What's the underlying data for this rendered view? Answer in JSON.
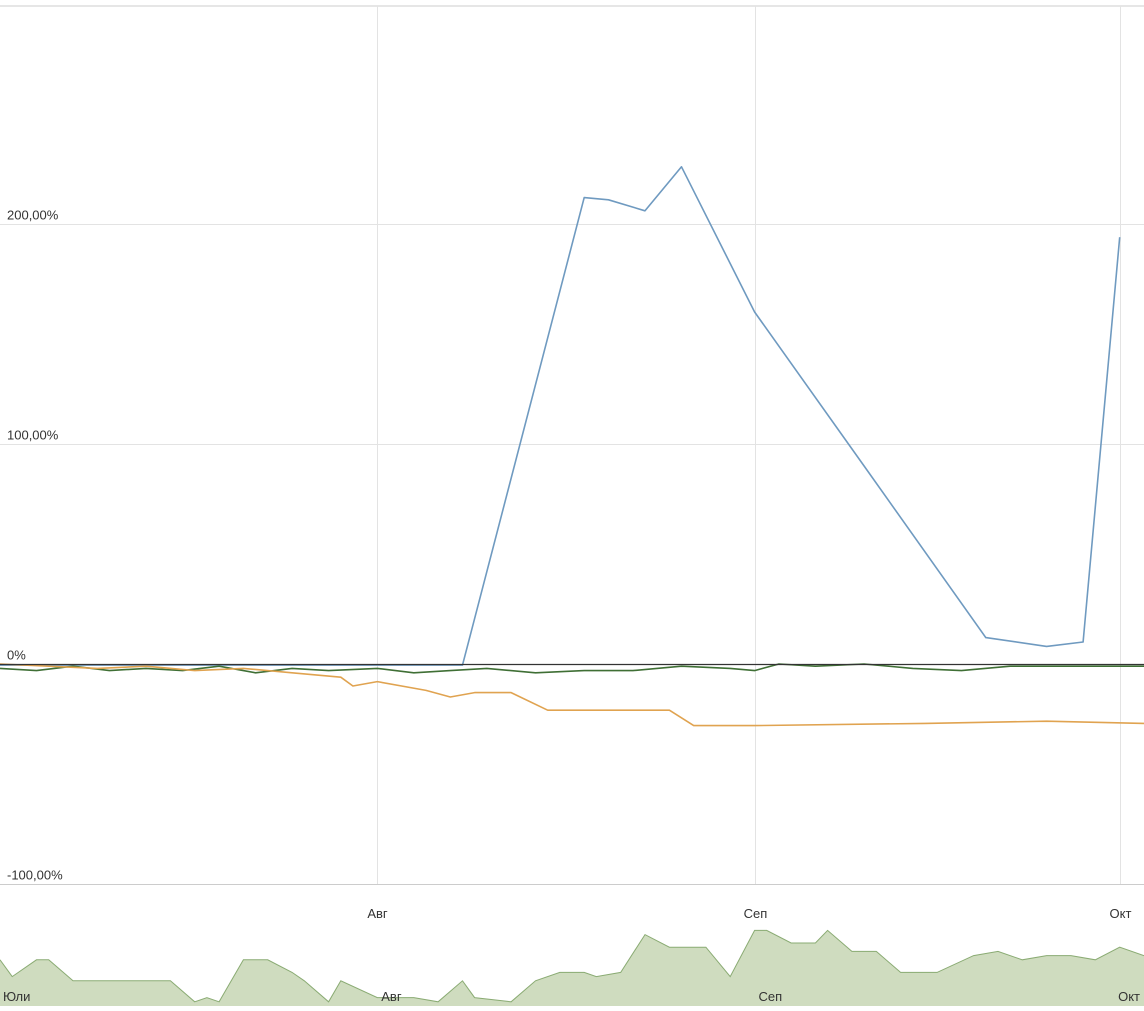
{
  "chart_data": {
    "type": "line",
    "ylim": [
      -100,
      300
    ],
    "y_ticks": [
      {
        "value": 200,
        "label": "200,00%"
      },
      {
        "value": 100,
        "label": "100,00%"
      },
      {
        "value": 0,
        "label": "0%"
      },
      {
        "value": -100,
        "label": "-100,00%"
      }
    ],
    "x_range": [
      "2013-07-01",
      "2013-10-03"
    ],
    "x_ticks": [
      {
        "date": "2013-08-01",
        "label": "Авг"
      },
      {
        "date": "2013-09-01",
        "label": "Сеп"
      },
      {
        "date": "2013-10-01",
        "label": "Окт"
      }
    ],
    "grid": true,
    "series": [
      {
        "color": "#6f9ac0",
        "points": [
          [
            "2013-07-01",
            -0.5
          ],
          [
            "2013-07-15",
            -0.5
          ],
          [
            "2013-08-01",
            -0.5
          ],
          [
            "2013-08-08",
            -0.5
          ],
          [
            "2013-08-18",
            212
          ],
          [
            "2013-08-20",
            211
          ],
          [
            "2013-08-23",
            206
          ],
          [
            "2013-08-26",
            226
          ],
          [
            "2013-09-01",
            160
          ],
          [
            "2013-09-10",
            90
          ],
          [
            "2013-09-20",
            12
          ],
          [
            "2013-09-25",
            8
          ],
          [
            "2013-09-28",
            10
          ],
          [
            "2013-10-01",
            194
          ]
        ]
      },
      {
        "color": "#3f6f35",
        "points": [
          [
            "2013-07-01",
            -2
          ],
          [
            "2013-07-04",
            -3
          ],
          [
            "2013-07-07",
            -1
          ],
          [
            "2013-07-10",
            -3
          ],
          [
            "2013-07-13",
            -2
          ],
          [
            "2013-07-16",
            -3
          ],
          [
            "2013-07-19",
            -1
          ],
          [
            "2013-07-22",
            -4
          ],
          [
            "2013-07-25",
            -2
          ],
          [
            "2013-07-28",
            -3
          ],
          [
            "2013-08-01",
            -2
          ],
          [
            "2013-08-04",
            -4
          ],
          [
            "2013-08-07",
            -3
          ],
          [
            "2013-08-10",
            -2
          ],
          [
            "2013-08-14",
            -4
          ],
          [
            "2013-08-18",
            -3
          ],
          [
            "2013-08-22",
            -3
          ],
          [
            "2013-08-26",
            -1
          ],
          [
            "2013-08-30",
            -2
          ],
          [
            "2013-09-01",
            -3
          ],
          [
            "2013-09-03",
            0
          ],
          [
            "2013-09-06",
            -1
          ],
          [
            "2013-09-10",
            0
          ],
          [
            "2013-09-14",
            -2
          ],
          [
            "2013-09-18",
            -3
          ],
          [
            "2013-09-22",
            -1
          ],
          [
            "2013-09-26",
            -1
          ],
          [
            "2013-09-30",
            -1
          ],
          [
            "2013-10-03",
            -1
          ]
        ]
      },
      {
        "color": "#e0a350",
        "points": [
          [
            "2013-07-01",
            0
          ],
          [
            "2013-07-05",
            -1
          ],
          [
            "2013-07-09",
            -2
          ],
          [
            "2013-07-13",
            -1
          ],
          [
            "2013-07-17",
            -3
          ],
          [
            "2013-07-21",
            -2
          ],
          [
            "2013-07-25",
            -4
          ],
          [
            "2013-07-29",
            -6
          ],
          [
            "2013-07-30",
            -10
          ],
          [
            "2013-08-01",
            -8
          ],
          [
            "2013-08-05",
            -12
          ],
          [
            "2013-08-07",
            -15
          ],
          [
            "2013-08-09",
            -13
          ],
          [
            "2013-08-12",
            -13
          ],
          [
            "2013-08-15",
            -21
          ],
          [
            "2013-08-18",
            -21
          ],
          [
            "2013-08-22",
            -21
          ],
          [
            "2013-08-25",
            -21
          ],
          [
            "2013-08-27",
            -28
          ],
          [
            "2013-09-01",
            -28
          ],
          [
            "2013-09-15",
            -27
          ],
          [
            "2013-09-25",
            -26
          ],
          [
            "2013-10-03",
            -27
          ]
        ]
      }
    ],
    "navigator": {
      "labels": [
        {
          "date": "2013-07-01",
          "label": "Юли"
        },
        {
          "date": "2013-08-01",
          "label": "Авг"
        },
        {
          "date": "2013-09-01",
          "label": "Сеп"
        },
        {
          "date": "2013-10-01",
          "label": "Окт"
        }
      ],
      "fill_color": "#cfdcbf",
      "line_color": "#8aab73",
      "series": [
        [
          "2013-07-01",
          0.55
        ],
        [
          "2013-07-02",
          0.35
        ],
        [
          "2013-07-04",
          0.55
        ],
        [
          "2013-07-05",
          0.55
        ],
        [
          "2013-07-07",
          0.3
        ],
        [
          "2013-07-12",
          0.3
        ],
        [
          "2013-07-15",
          0.3
        ],
        [
          "2013-07-17",
          0.05
        ],
        [
          "2013-07-18",
          0.1
        ],
        [
          "2013-07-19",
          0.05
        ],
        [
          "2013-07-21",
          0.55
        ],
        [
          "2013-07-23",
          0.55
        ],
        [
          "2013-07-25",
          0.4
        ],
        [
          "2013-07-26",
          0.3
        ],
        [
          "2013-07-28",
          0.05
        ],
        [
          "2013-07-29",
          0.3
        ],
        [
          "2013-08-01",
          0.1
        ],
        [
          "2013-08-04",
          0.1
        ],
        [
          "2013-08-06",
          0.05
        ],
        [
          "2013-08-08",
          0.3
        ],
        [
          "2013-08-09",
          0.1
        ],
        [
          "2013-08-12",
          0.05
        ],
        [
          "2013-08-14",
          0.3
        ],
        [
          "2013-08-16",
          0.4
        ],
        [
          "2013-08-18",
          0.4
        ],
        [
          "2013-08-19",
          0.35
        ],
        [
          "2013-08-21",
          0.4
        ],
        [
          "2013-08-23",
          0.85
        ],
        [
          "2013-08-25",
          0.7
        ],
        [
          "2013-08-27",
          0.7
        ],
        [
          "2013-08-28",
          0.7
        ],
        [
          "2013-08-30",
          0.35
        ],
        [
          "2013-09-01",
          0.9
        ],
        [
          "2013-09-02",
          0.9
        ],
        [
          "2013-09-04",
          0.75
        ],
        [
          "2013-09-06",
          0.75
        ],
        [
          "2013-09-07",
          0.9
        ],
        [
          "2013-09-09",
          0.65
        ],
        [
          "2013-09-11",
          0.65
        ],
        [
          "2013-09-13",
          0.4
        ],
        [
          "2013-09-16",
          0.4
        ],
        [
          "2013-09-19",
          0.6
        ],
        [
          "2013-09-21",
          0.65
        ],
        [
          "2013-09-23",
          0.55
        ],
        [
          "2013-09-25",
          0.6
        ],
        [
          "2013-09-27",
          0.6
        ],
        [
          "2013-09-29",
          0.55
        ],
        [
          "2013-10-01",
          0.7
        ],
        [
          "2013-10-03",
          0.6
        ]
      ]
    }
  }
}
